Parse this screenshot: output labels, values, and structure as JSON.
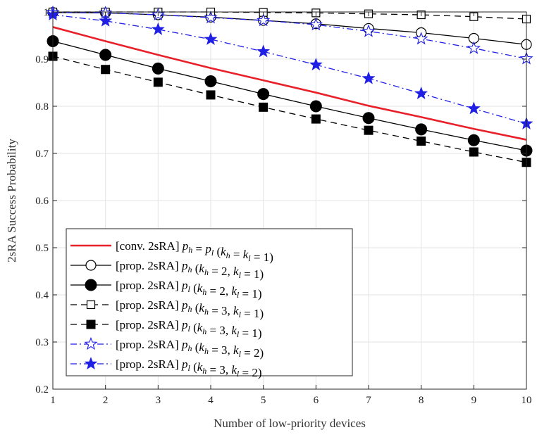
{
  "chart_data": {
    "type": "line",
    "title": "",
    "xlabel": "Number of low-priority devices",
    "ylabel": "2sRA Success Probability",
    "xlim": [
      1,
      10
    ],
    "ylim": [
      0.2,
      1.0
    ],
    "x": [
      1,
      2,
      3,
      4,
      5,
      6,
      7,
      8,
      9,
      10
    ],
    "x_ticks": [
      1,
      2,
      3,
      4,
      5,
      6,
      7,
      8,
      9,
      10
    ],
    "y_ticks": [
      0.2,
      0.3,
      0.4,
      0.5,
      0.6,
      0.7,
      0.8,
      0.9,
      1
    ],
    "y_tick_labels": [
      "0.2",
      "0.3",
      "0.4",
      "0.5",
      "0.6",
      "0.7",
      "0.8",
      "0.9",
      "1"
    ],
    "grid": true,
    "legend_position": "bottom-left",
    "series": [
      {
        "id": "conv",
        "legend_text": "[conv. 2sRA] p_h = p_l (k_h = k_l = 1)",
        "legend_prefix": "[conv. 2sRA] ",
        "legend_math": "p_h = p_l (k_h = k_l = 1)",
        "color": "#e8202a",
        "line": "solid",
        "marker": "none",
        "values": [
          0.968,
          0.938,
          0.909,
          0.881,
          0.855,
          0.829,
          0.801,
          0.777,
          0.752,
          0.729
        ]
      },
      {
        "id": "prop-ph-21",
        "legend_text": "[prop. 2sRA] p_h (k_h = 2, k_l = 1)",
        "legend_prefix": "[prop. 2sRA] ",
        "legend_math": "p_h (k_h = 2, k_l = 1)",
        "color": "#000000",
        "line": "solid",
        "marker": "circle-open",
        "values": [
          0.999,
          0.998,
          0.994,
          0.989,
          0.982,
          0.975,
          0.965,
          0.956,
          0.944,
          0.931
        ]
      },
      {
        "id": "prop-pl-21",
        "legend_text": "[prop. 2sRA] p_l (k_h = 2, k_l = 1)",
        "legend_prefix": "[prop. 2sRA] ",
        "legend_math": "p_l (k_h = 2, k_l = 1)",
        "color": "#000000",
        "line": "solid",
        "marker": "circle-filled",
        "values": [
          0.938,
          0.909,
          0.88,
          0.853,
          0.826,
          0.8,
          0.775,
          0.751,
          0.728,
          0.706
        ]
      },
      {
        "id": "prop-ph-31",
        "legend_text": "[prop. 2sRA] p_h (k_h = 3, k_l = 1)",
        "legend_prefix": "[prop. 2sRA] ",
        "legend_math": "p_h (k_h = 3, k_l = 1)",
        "color": "#000000",
        "line": "dashed",
        "marker": "square-open",
        "values": [
          1.0,
          1.0,
          1.0,
          1.0,
          0.999,
          0.998,
          0.996,
          0.994,
          0.99,
          0.985
        ]
      },
      {
        "id": "prop-pl-31",
        "legend_text": "[prop. 2sRA] p_l (k_h = 3, k_l = 1)",
        "legend_prefix": "[prop. 2sRA] ",
        "legend_math": "p_l (k_h = 3, k_l = 1)",
        "color": "#000000",
        "line": "dashed",
        "marker": "square-filled",
        "values": [
          0.906,
          0.878,
          0.851,
          0.824,
          0.798,
          0.773,
          0.749,
          0.726,
          0.703,
          0.681
        ]
      },
      {
        "id": "prop-ph-32",
        "legend_text": "[prop. 2sRA] p_h (k_h = 3, k_l = 2)",
        "legend_prefix": "[prop. 2sRA] ",
        "legend_math": "p_h (k_h = 3, k_l = 2)",
        "color": "#1f1fe6",
        "line": "dashdot",
        "marker": "star-open",
        "values": [
          0.999,
          0.998,
          0.994,
          0.988,
          0.982,
          0.973,
          0.959,
          0.943,
          0.923,
          0.901
        ]
      },
      {
        "id": "prop-pl-32",
        "legend_text": "[prop. 2sRA] p_l (k_h = 3, k_l = 2)",
        "legend_prefix": "[prop. 2sRA] ",
        "legend_math": "p_l (k_h = 3, k_l = 2)",
        "color": "#1f1fe6",
        "line": "dashdot",
        "marker": "star-filled",
        "values": [
          0.994,
          0.981,
          0.963,
          0.942,
          0.916,
          0.888,
          0.859,
          0.827,
          0.795,
          0.763
        ]
      }
    ]
  }
}
